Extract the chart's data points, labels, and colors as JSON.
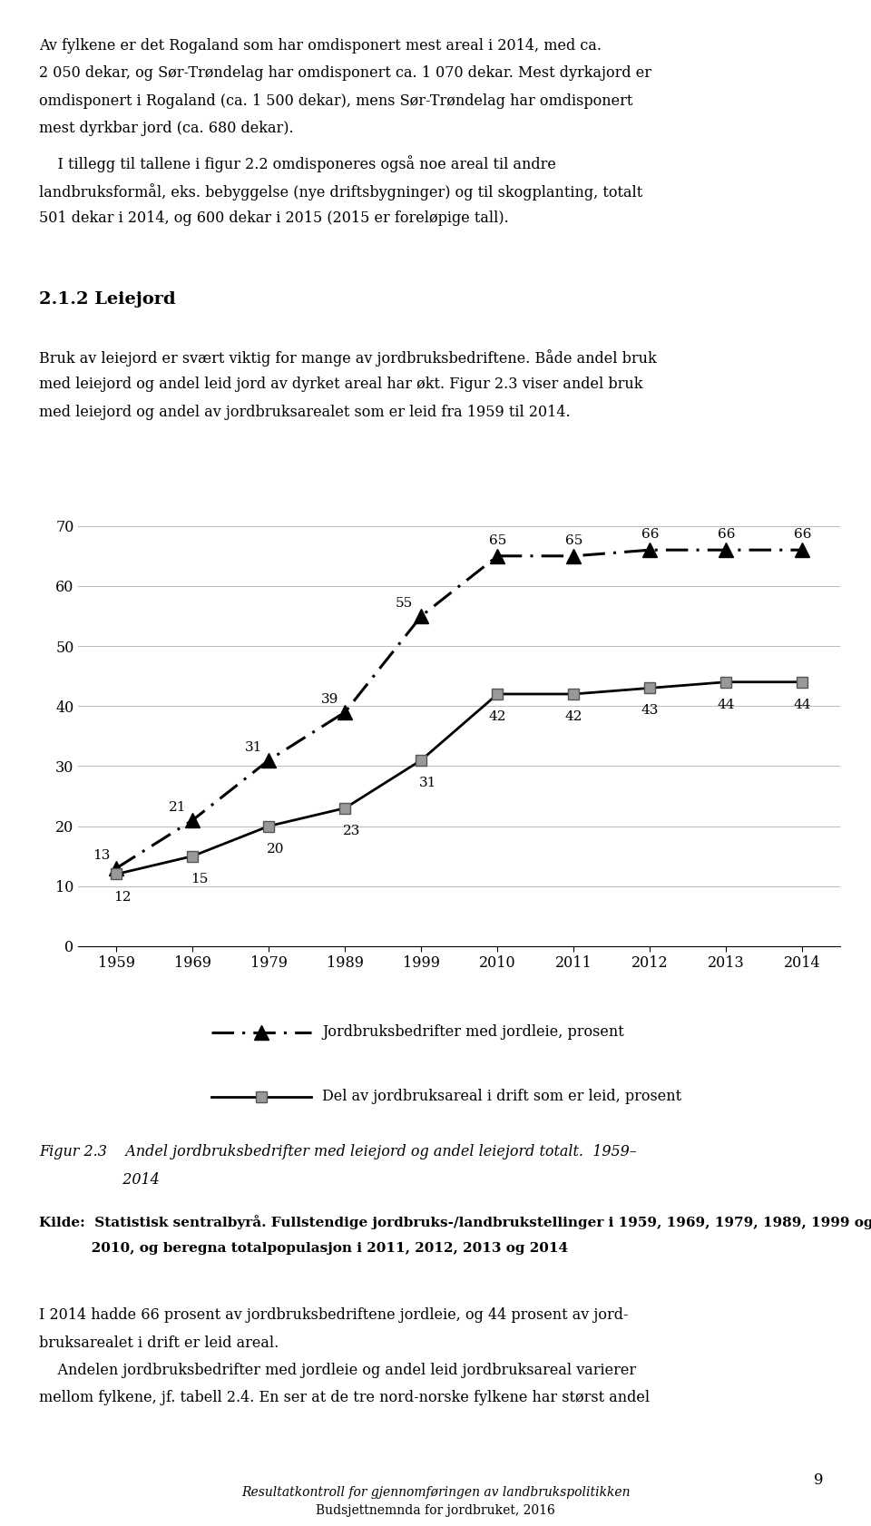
{
  "x_labels": [
    "1959",
    "1969",
    "1979",
    "1989",
    "1999",
    "2010",
    "2011",
    "2012",
    "2013",
    "2014"
  ],
  "x_positions": [
    0,
    1,
    2,
    3,
    4,
    5,
    6,
    7,
    8,
    9
  ],
  "series1_values": [
    13,
    21,
    31,
    39,
    55,
    65,
    65,
    66,
    66,
    66
  ],
  "series2_values": [
    12,
    15,
    20,
    23,
    31,
    42,
    42,
    43,
    44,
    44
  ],
  "ylim": [
    0,
    75
  ],
  "yticks": [
    0,
    10,
    20,
    30,
    40,
    50,
    60,
    70
  ],
  "page_bg": "#ffffff",
  "text_color": "#000000",
  "legend1_label": "Jordbruksbedrifter med jordleie, prosent",
  "legend2_label": "Del av jordbruksareal i drift som er leid, prosent",
  "body1_line1": "Av fylkene er det Rogaland som har omdisponert mest areal i 2014, med ca.",
  "body1_line2": "2 050 dekar, og Sør-Trøndelag har omdisponert ca. 1 070 dekar. Mest dyrkajord er",
  "body1_line3": "omdisponert i Rogaland (ca. 1 500 dekar), mens Sør-Trøndelag har omdisponert",
  "body1_line4": "mest dyrkbar jord (ca. 680 dekar).",
  "body2_line1": "    I tillegg til tallene i figur 2.2 omdisponeres også noe areal til andre",
  "body2_line2": "landbruksformål, eks. bebyggelse (nye driftsbygninger) og til skogplanting, totalt",
  "body2_line3": "501 dekar i 2014, og 600 dekar i 2015 (2015 er foreløpige tall).",
  "section_header": "2.1.2 Leiejord",
  "sec_line1": "Bruk av leiejord er svært viktig for mange av jordbruksbedriftene. Både andel bruk",
  "sec_line2": "med leiejord og andel leid jord av dyrket areal har økt. Figur 2.3 viser andel bruk",
  "sec_line3": "med leiejord og andel av jordbruksarealet som er leid fra 1959 til 2014.",
  "cap_line1": "Figur 2.3    Andel jordbruksbedrifter med leiejord og andel leiejord totalt.  1959–",
  "cap_line2": "                  2014",
  "src_line1": "Kilde:  Statistisk sentralbyrå. Fullstendige jordbruks-/landbrukstellinger i 1959, 1969, 1979, 1989, 1999 og",
  "src_line2": "           2010, og beregna totalpopulasjon i 2011, 2012, 2013 og 2014",
  "bot_line1": "I 2014 hadde 66 prosent av jordbruksbedriftene jordleie, og 44 prosent av jord-",
  "bot_line2": "bruksarealet i drift er leid areal.",
  "bot_line3": "    Andelen jordbruksbedrifter med jordleie og andel leid jordbruksareal varierer",
  "bot_line4": "mellom fylkene, jf. tabell 2.4. En ser at de tre nord-norske fylkene har størst andel",
  "footer1": "Resultatkontroll for gjennomføringen av landbrukspolitikken",
  "footer2": "Budsjettnemnda for jordbruket, 2016",
  "page_number": "9"
}
